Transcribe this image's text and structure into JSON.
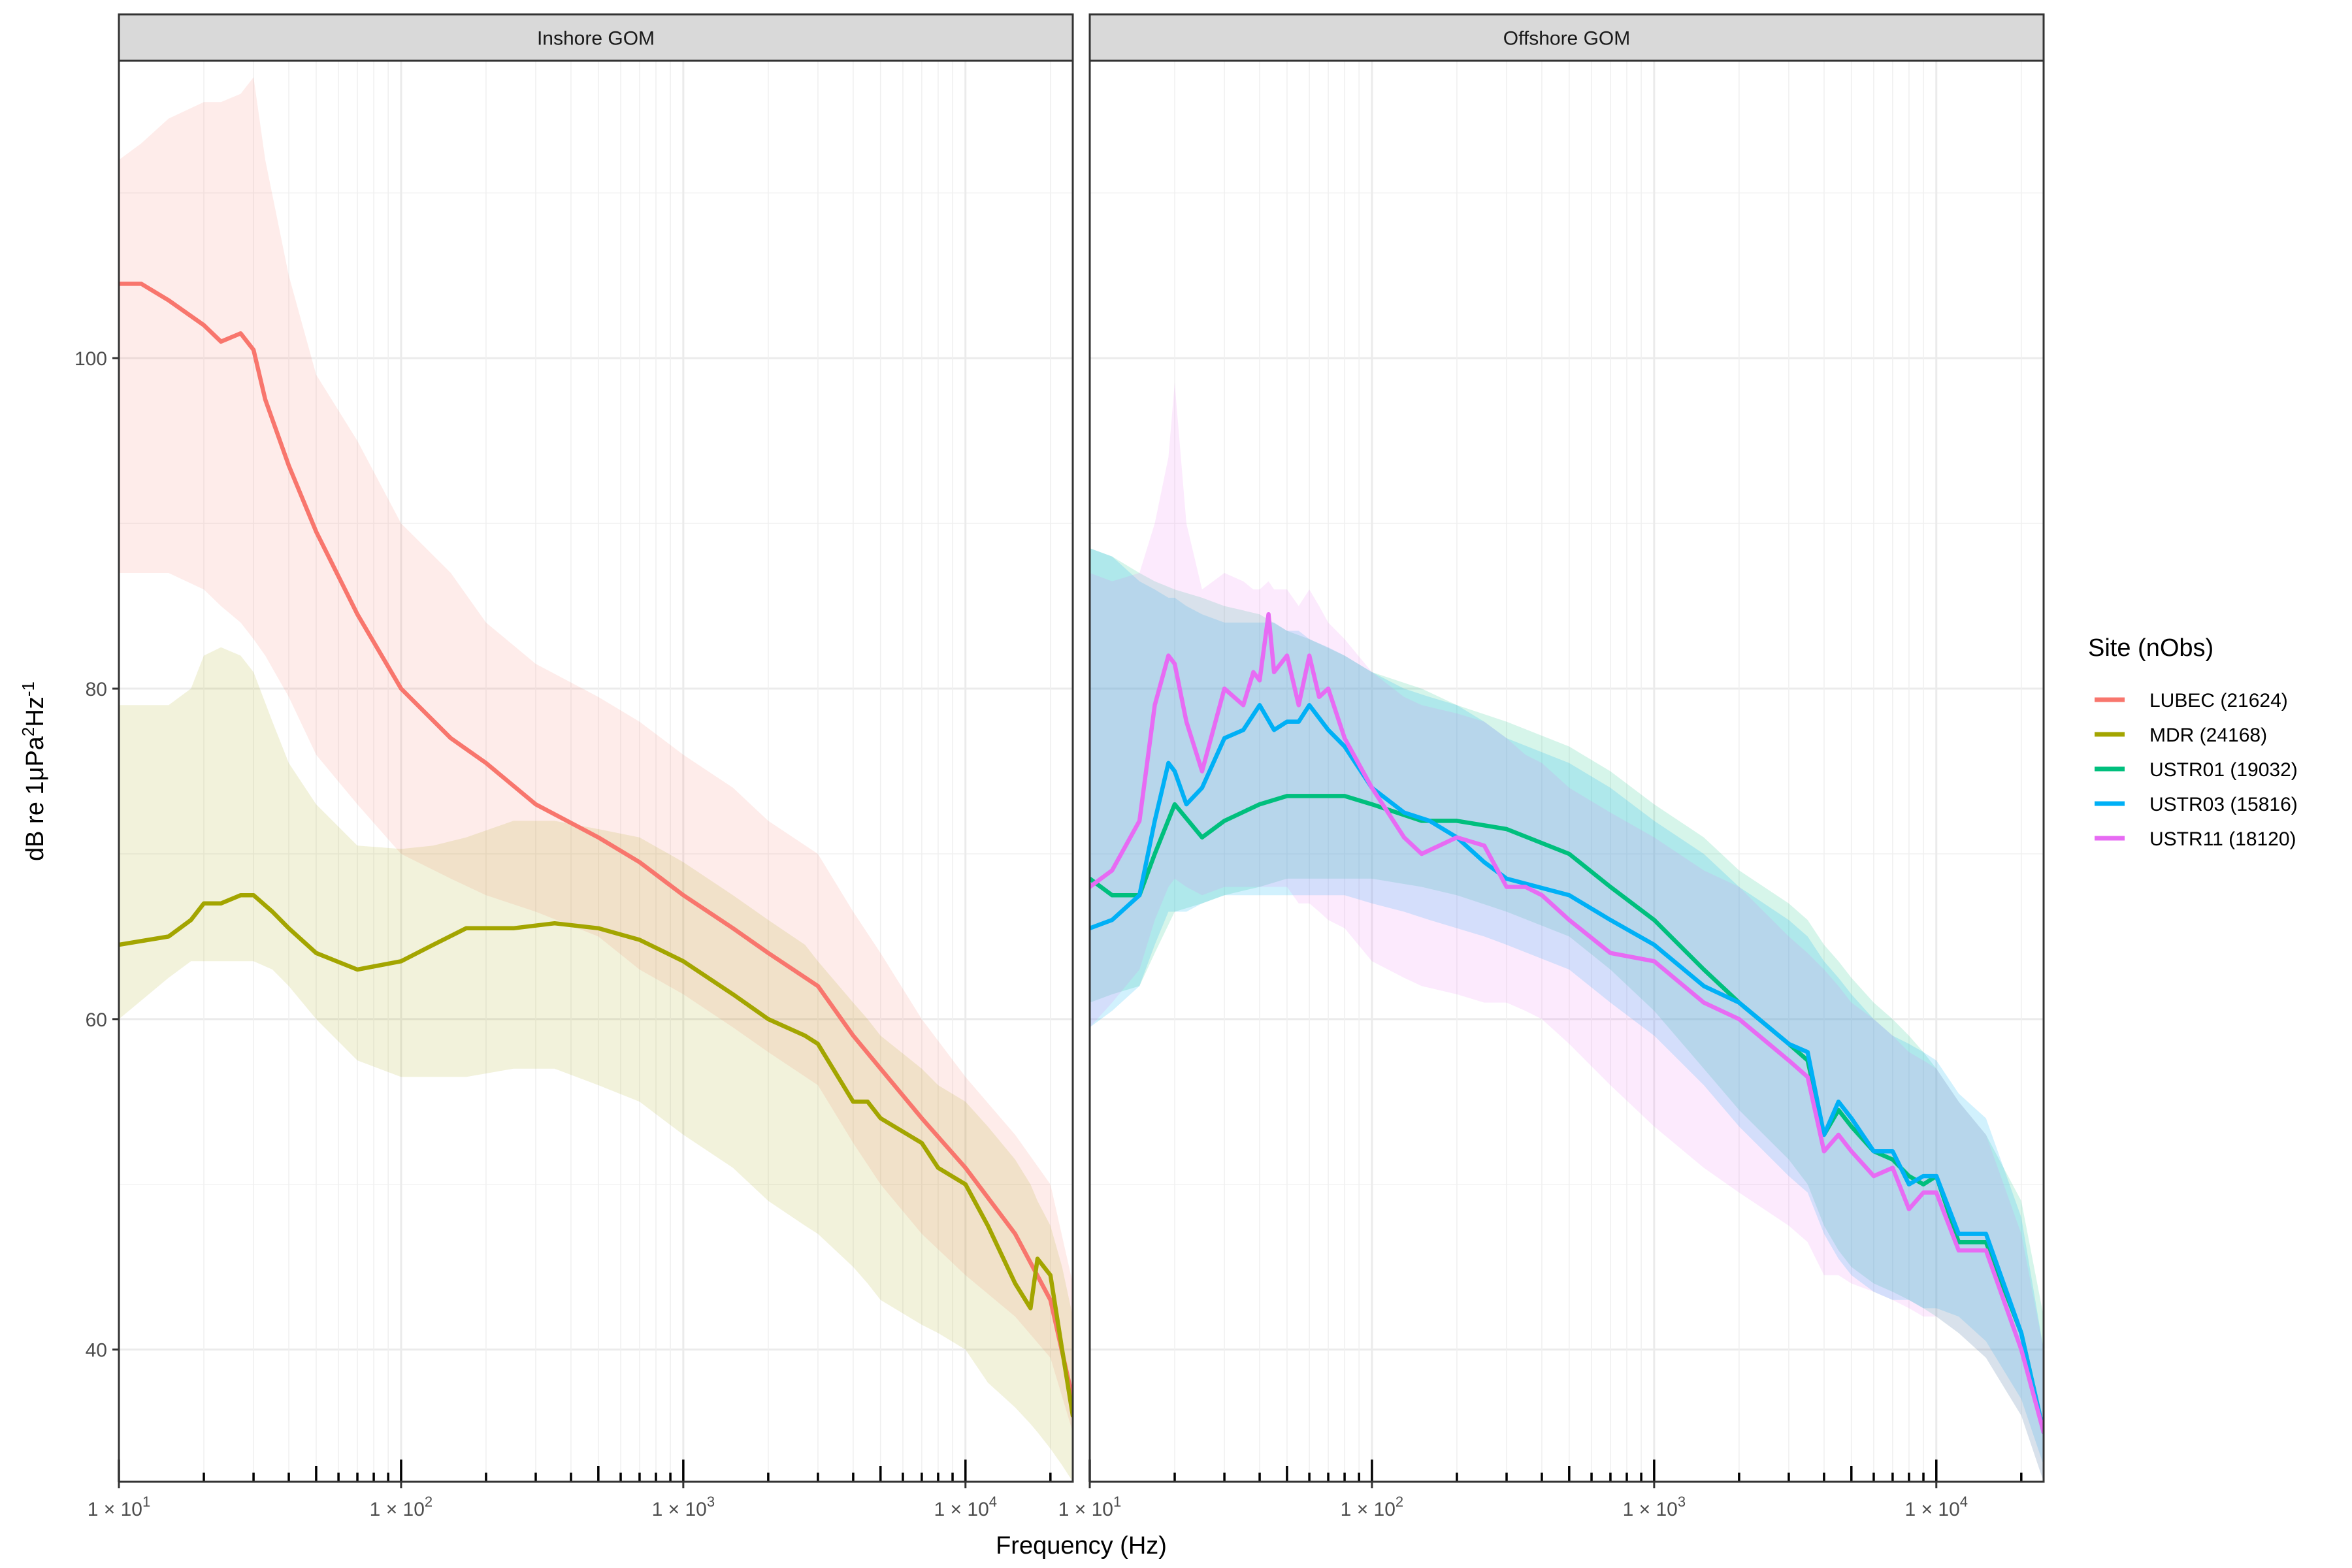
{
  "chart_data": {
    "type": "line",
    "ylabel_parts": [
      "dB re 1",
      "μ",
      "Pa",
      "2",
      "Hz",
      "-1"
    ],
    "xlabel": "Frequency (Hz)",
    "x_scale": "log",
    "xlim": [
      10,
      24000
    ],
    "ylim": [
      32,
      118
    ],
    "y_ticks": [
      40,
      60,
      80,
      100
    ],
    "y_tick_labels": [
      "40",
      "60",
      "80",
      "100"
    ],
    "x_ticks": [
      10,
      100,
      1000,
      10000
    ],
    "x_tick_labels": [
      {
        "base": "1 × 10",
        "exp": "1"
      },
      {
        "base": "1 × 10",
        "exp": "2"
      },
      {
        "base": "1 × 10",
        "exp": "3"
      },
      {
        "base": "1 × 10",
        "exp": "4"
      }
    ],
    "grid": true,
    "legend": {
      "title": "Site (nObs)",
      "position": "right",
      "entries": [
        {
          "label": "LUBEC (21624)",
          "color": "#F8766D"
        },
        {
          "label": "MDR (24168)",
          "color": "#A3A500"
        },
        {
          "label": "USTR01 (19032)",
          "color": "#00BF7D"
        },
        {
          "label": "USTR03 (15816)",
          "color": "#00B0F6"
        },
        {
          "label": "USTR11 (18120)",
          "color": "#E76BF3"
        }
      ]
    },
    "panels": [
      {
        "strip": "Inshore GOM",
        "series": [
          {
            "site": "LUBEC (21624)",
            "color": "#F8766D",
            "x": [
              10,
              12,
              15,
              20,
              23,
              27,
              30,
              33,
              40,
              50,
              70,
              100,
              150,
              200,
              300,
              500,
              700,
              1000,
              1500,
              2000,
              3000,
              4000,
              5000,
              7000,
              10000,
              15000,
              20000,
              24000
            ],
            "y": [
              104.5,
              104.5,
              103.5,
              102,
              101,
              101.5,
              100.5,
              97.5,
              93.5,
              89.5,
              84.5,
              80,
              77,
              75.5,
              73,
              71,
              69.5,
              67.5,
              65.5,
              64,
              62,
              59,
              57,
              54,
              51,
              47,
              43,
              37
            ],
            "upper": [
              112,
              113,
              114.5,
              115.5,
              115.5,
              116,
              117,
              112,
              105,
              99,
              95,
              90,
              87,
              84,
              81.5,
              79.5,
              78,
              76,
              74,
              72,
              70,
              66.5,
              64,
              60,
              56.5,
              53,
              50,
              44
            ],
            "lower": [
              87,
              87,
              87,
              86,
              85,
              84,
              83,
              82,
              79.5,
              76,
              73,
              70,
              68.5,
              67.5,
              66.5,
              65,
              63,
              61.5,
              59.5,
              58,
              56,
              52.5,
              50,
              47,
              44.5,
              42,
              39.5,
              35
            ]
          },
          {
            "site": "MDR (24168)",
            "color": "#A3A500",
            "x": [
              10,
              15,
              18,
              20,
              23,
              27,
              30,
              35,
              40,
              50,
              70,
              100,
              130,
              170,
              250,
              350,
              500,
              700,
              1000,
              1500,
              2000,
              2700,
              3000,
              4000,
              4500,
              5000,
              7000,
              8000,
              10000,
              12000,
              15000,
              17000,
              18000,
              20000,
              22000,
              24000
            ],
            "y": [
              64.5,
              65,
              66,
              67,
              67,
              67.5,
              67.5,
              66.5,
              65.5,
              64,
              63,
              63.5,
              64.5,
              65.5,
              65.5,
              65.8,
              65.5,
              64.8,
              63.5,
              61.5,
              60,
              59,
              58.5,
              55,
              55,
              54,
              52.5,
              51,
              50,
              47.5,
              44,
              42.5,
              45.5,
              44.5,
              40,
              36
            ],
            "upper": [
              79,
              79,
              80,
              82,
              82.5,
              82,
              81,
              78,
              75.5,
              73,
              70.5,
              70.3,
              70.5,
              71,
              72,
              72,
              71.5,
              71,
              69.5,
              67.5,
              66,
              64.5,
              63.5,
              61,
              60,
              59,
              57,
              56,
              55,
              53.5,
              51.5,
              50,
              49,
              47.5,
              45,
              42
            ],
            "lower": [
              60,
              62.5,
              63.5,
              63.5,
              63.5,
              63.5,
              63.5,
              63,
              62,
              60,
              57.5,
              56.5,
              56.5,
              56.5,
              57,
              57,
              56,
              55,
              53,
              51,
              49,
              47.5,
              47,
              45,
              44,
              43,
              41.5,
              41,
              40,
              38,
              36.5,
              35.5,
              35,
              34,
              33,
              32
            ]
          }
        ]
      },
      {
        "strip": "Offshore GOM",
        "series": [
          {
            "site": "USTR01 (19032)",
            "color": "#00BF7D",
            "x": [
              10,
              12,
              15,
              17,
              20,
              25,
              30,
              40,
              50,
              60,
              80,
              100,
              150,
              200,
              300,
              500,
              700,
              1000,
              1500,
              2000,
              3000,
              3500,
              4000,
              4500,
              5000,
              6000,
              7000,
              8000,
              9000,
              10000,
              12000,
              15000,
              20000,
              24000
            ],
            "y": [
              68.5,
              67.5,
              67.5,
              70,
              73,
              71,
              72,
              73,
              73.5,
              73.5,
              73.5,
              73,
              72,
              72,
              71.5,
              70,
              68,
              66,
              63,
              61,
              58.5,
              57.5,
              53,
              54.5,
              53.5,
              52,
              51.5,
              50.5,
              50,
              50.5,
              46.5,
              46.5,
              41,
              35
            ],
            "upper": [
              88.5,
              88,
              87,
              86.5,
              86,
              85.5,
              85,
              84.5,
              83.5,
              83,
              82,
              81,
              80,
              79,
              78,
              76.5,
              75,
              73,
              71,
              69,
              67,
              66,
              64.5,
              63.5,
              62.5,
              61,
              60,
              59,
              58,
              57,
              55,
              53,
              49,
              42
            ],
            "lower": [
              61,
              61.5,
              62,
              64,
              66.5,
              67,
              67.5,
              68,
              68.5,
              68.5,
              68.5,
              68.5,
              68,
              67.5,
              66.5,
              65,
              63,
              60.5,
              57,
              54.5,
              51.5,
              50,
              47.5,
              46,
              45,
              44,
              43.5,
              43,
              42.5,
              42,
              41,
              39.5,
              36,
              32
            ]
          },
          {
            "site": "USTR03 (15816)",
            "color": "#00B0F6",
            "x": [
              10,
              12,
              15,
              17,
              19,
              20,
              22,
              25,
              30,
              35,
              40,
              45,
              50,
              55,
              60,
              70,
              80,
              100,
              130,
              160,
              200,
              250,
              300,
              500,
              700,
              1000,
              1500,
              2000,
              3000,
              3500,
              4000,
              4500,
              5000,
              6000,
              7000,
              8000,
              9000,
              10000,
              12000,
              15000,
              20000,
              24000
            ],
            "y": [
              65.5,
              66,
              67.5,
              72,
              75.5,
              75,
              73,
              74,
              77,
              77.5,
              79,
              77.5,
              78,
              78,
              79,
              77.5,
              76.5,
              74,
              72.5,
              72,
              71,
              69.5,
              68.5,
              67.5,
              66,
              64.5,
              62,
              61,
              58.5,
              58,
              53,
              55,
              54,
              52,
              52,
              50,
              50.5,
              50.5,
              47,
              47,
              41,
              35
            ],
            "upper": [
              88.5,
              88,
              86.5,
              86,
              85.5,
              85.5,
              85,
              84.5,
              84,
              84,
              84,
              84,
              83.5,
              83.5,
              83,
              82.5,
              82,
              81,
              80,
              79.5,
              79,
              78,
              77,
              75.5,
              74,
              72,
              70,
              68,
              66,
              65,
              63.5,
              62.5,
              61.5,
              60,
              59,
              58.5,
              58,
              57.5,
              55.5,
              54,
              48,
              40
            ],
            "lower": [
              59.5,
              60.5,
              62,
              64.5,
              66.5,
              66.5,
              66.5,
              67,
              67.5,
              67.5,
              67.5,
              67.5,
              67.5,
              67.5,
              67.5,
              67.5,
              67.5,
              67,
              66.5,
              66,
              65.5,
              65,
              64.5,
              63,
              61,
              59,
              56,
              53.5,
              50.5,
              49.5,
              47,
              45.5,
              44.5,
              43.5,
              43,
              43,
              42.5,
              42.5,
              42,
              40.5,
              37,
              33
            ]
          },
          {
            "site": "USTR11 (18120)",
            "color": "#E76BF3",
            "x": [
              10,
              12,
              15,
              17,
              19,
              20,
              22,
              25,
              30,
              35,
              38,
              40,
              43,
              45,
              50,
              55,
              60,
              65,
              70,
              80,
              100,
              130,
              150,
              200,
              250,
              300,
              350,
              400,
              500,
              700,
              1000,
              1500,
              2000,
              3000,
              3500,
              4000,
              4500,
              5000,
              6000,
              7000,
              8000,
              9000,
              10000,
              12000,
              15000,
              20000,
              24000
            ],
            "y": [
              68,
              69,
              72,
              79,
              82,
              81.5,
              78,
              75,
              80,
              79,
              81,
              80.5,
              84.5,
              81,
              82,
              79,
              82,
              79.5,
              80,
              77,
              74,
              71,
              70,
              71,
              70.5,
              68,
              68,
              67.5,
              66,
              64,
              63.5,
              61,
              60,
              57.5,
              56.5,
              52,
              53,
              52,
              50.5,
              51,
              48.5,
              49.5,
              49.5,
              46,
              46,
              40,
              35
            ],
            "upper": [
              87,
              86.5,
              87,
              90,
              94,
              98.5,
              90,
              86,
              87,
              86.5,
              86,
              86,
              86.5,
              86,
              86,
              85,
              86,
              85,
              84,
              83,
              81,
              79.5,
              79,
              78.5,
              78,
              77,
              76,
              75.5,
              74,
              72.5,
              71,
              69,
              68,
              65,
              64,
              63,
              62,
              61,
              60,
              59,
              58,
              57.5,
              57,
              55,
              53,
              47,
              40
            ],
            "lower": [
              59.5,
              61,
              63,
              66,
              68,
              68.5,
              68,
              67.5,
              68,
              68,
              68,
              68,
              68,
              68,
              68,
              67,
              67,
              66.5,
              66,
              65.5,
              63.5,
              62.5,
              62,
              61.5,
              61,
              61,
              60.5,
              60,
              58.5,
              56,
              53.5,
              51,
              49.5,
              47.5,
              46.5,
              44.5,
              44.5,
              44,
              43.5,
              43,
              42.5,
              42,
              42,
              41,
              39.5,
              36,
              32
            ]
          }
        ]
      }
    ]
  }
}
